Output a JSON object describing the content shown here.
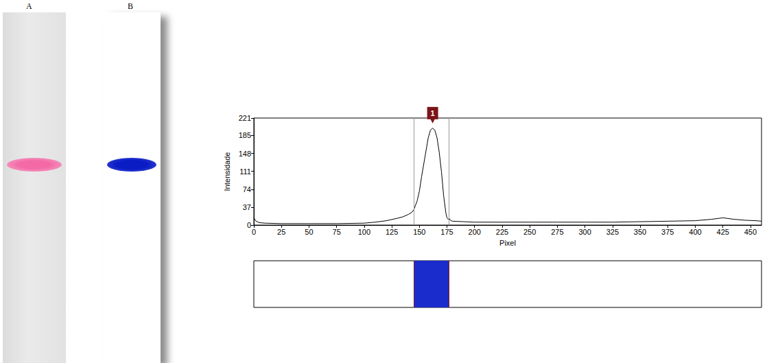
{
  "panel_labels": [
    "A",
    "B"
  ],
  "chart_data": {
    "type": "line",
    "x_label": "Pixel",
    "y_label": "Intensidade",
    "x": [
      0,
      2,
      5,
      10,
      25,
      50,
      75,
      100,
      110,
      120,
      130,
      135,
      140,
      143,
      145,
      148,
      150,
      152,
      155,
      158,
      160,
      162,
      164,
      166,
      168,
      170,
      172,
      174,
      175,
      176,
      177,
      178,
      180,
      190,
      200,
      225,
      250,
      275,
      300,
      325,
      350,
      375,
      400,
      415,
      425,
      435,
      445,
      455,
      460
    ],
    "values": [
      15,
      8,
      5,
      4,
      3,
      3,
      3,
      4,
      6,
      9,
      14,
      17,
      22,
      26,
      32,
      50,
      70,
      100,
      140,
      180,
      196,
      200,
      196,
      180,
      150,
      110,
      60,
      25,
      15,
      12,
      14,
      10,
      8,
      7,
      6,
      6,
      6,
      6,
      6,
      6,
      7,
      8,
      9,
      12,
      15,
      12,
      10,
      9,
      8
    ],
    "color": "#000000",
    "xlim": [
      0,
      460
    ],
    "xticks": [
      0,
      25,
      50,
      75,
      100,
      125,
      150,
      175,
      200,
      225,
      250,
      275,
      300,
      325,
      350,
      375,
      400,
      425,
      450
    ],
    "ylim": [
      0,
      221
    ],
    "yticks": [
      0,
      37,
      74,
      111,
      148,
      185,
      221
    ],
    "grid": false,
    "peak_bounds": [
      145,
      177
    ],
    "annotations": [
      {
        "text": "1",
        "x": 162,
        "y": 200
      }
    ]
  }
}
